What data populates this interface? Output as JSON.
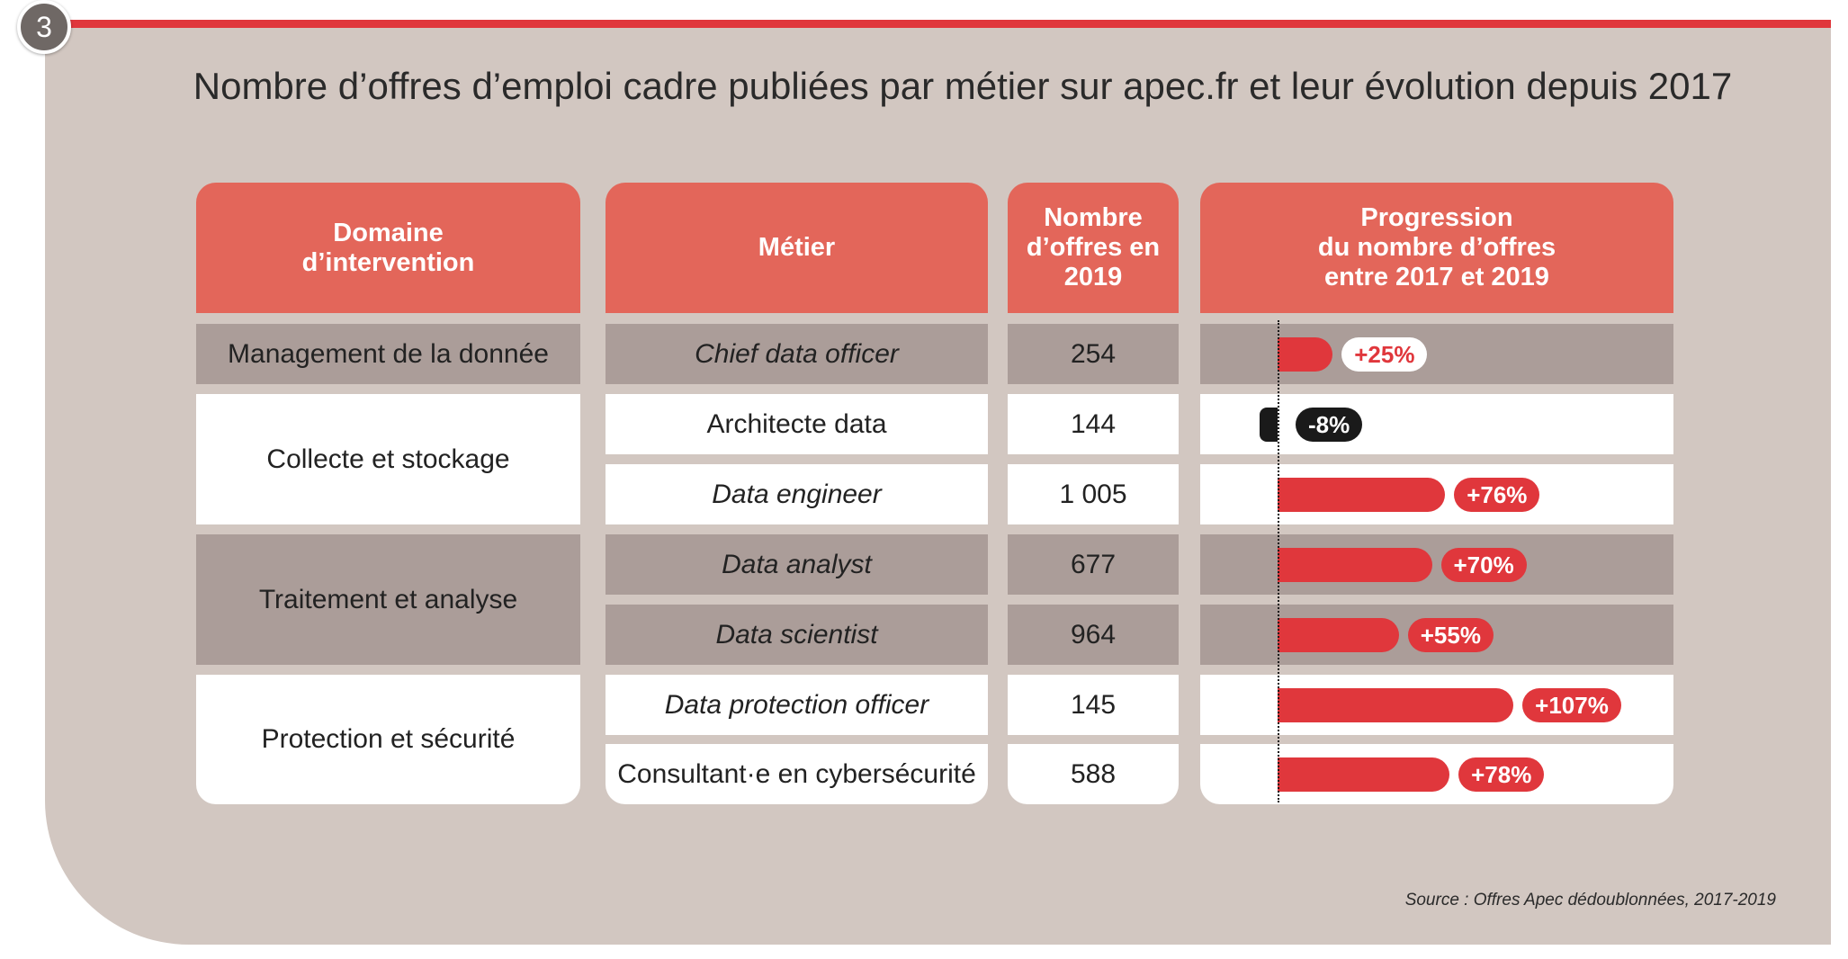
{
  "figure_number": "3",
  "colors": {
    "accent_red": "#e0373c",
    "header_salmon": "#e3665a",
    "panel_beige": "#d2c7c1",
    "row_dark": "#ab9d99",
    "negative_black": "#1a1a1a"
  },
  "title": "Nombre d’offres d’emploi cadre publiées par métier sur apec.fr et leur évolution depuis 2017",
  "headers": {
    "domaine": "Domaine\nd’intervention",
    "metier": "Métier",
    "nombre": "Nombre\nd’offres en\n2019",
    "progression": "Progression\ndu nombre d’offres\nentre 2017 et 2019"
  },
  "domains": [
    {
      "label": "Management de la donnée",
      "row_span": 1,
      "shade": "dark"
    },
    {
      "label": "Collecte et stockage",
      "row_span": 2,
      "shade": "light"
    },
    {
      "label": "Traitement et analyse",
      "row_span": 2,
      "shade": "dark"
    },
    {
      "label": "Protection et sécurité",
      "row_span": 2,
      "shade": "light"
    }
  ],
  "rows": [
    {
      "metier": "Chief data officer",
      "italic": true,
      "nombre": "254",
      "progression": 25,
      "label": "+25%",
      "shade": "dark",
      "pill": "white"
    },
    {
      "metier": "Architecte data",
      "italic": false,
      "nombre": "144",
      "progression": -8,
      "label": "-8%",
      "shade": "light",
      "pill": "black"
    },
    {
      "metier": "Data engineer",
      "italic": true,
      "nombre": "1 005",
      "progression": 76,
      "label": "+76%",
      "shade": "light",
      "pill": "red"
    },
    {
      "metier": "Data analyst",
      "italic": true,
      "nombre": "677",
      "progression": 70,
      "label": "+70%",
      "shade": "dark",
      "pill": "red"
    },
    {
      "metier": "Data scientist",
      "italic": true,
      "nombre": "964",
      "progression": 55,
      "label": "+55%",
      "shade": "dark",
      "pill": "red"
    },
    {
      "metier": "Data protection officer",
      "italic": true,
      "nombre": "145",
      "progression": 107,
      "label": "+107%",
      "shade": "light",
      "pill": "red"
    },
    {
      "metier": "Consultant·e en cybersécurité",
      "italic": false,
      "nombre": "588",
      "progression": 78,
      "label": "+78%",
      "shade": "light",
      "pill": "red"
    }
  ],
  "chart_data": {
    "type": "bar",
    "categories": [
      "Chief data officer",
      "Architecte data",
      "Data engineer",
      "Data analyst",
      "Data scientist",
      "Data protection officer",
      "Consultant·e en cybersécurité"
    ],
    "values": [
      25,
      -8,
      76,
      70,
      55,
      107,
      78
    ],
    "data_labels": [
      "+25%",
      "-8%",
      "+76%",
      "+70%",
      "+55%",
      "+107%",
      "+78%"
    ],
    "title": "Nombre d’offres d’emploi cadre publiées par métier sur apec.fr et leur évolution depuis 2017",
    "table_values": {
      "Nombre d’offres en 2019": [
        254,
        144,
        1005,
        677,
        964,
        145,
        588
      ]
    },
    "orientation": "horizontal",
    "grid": false
  },
  "source": "Source : Offres Apec dédoublonnées, 2017-2019"
}
